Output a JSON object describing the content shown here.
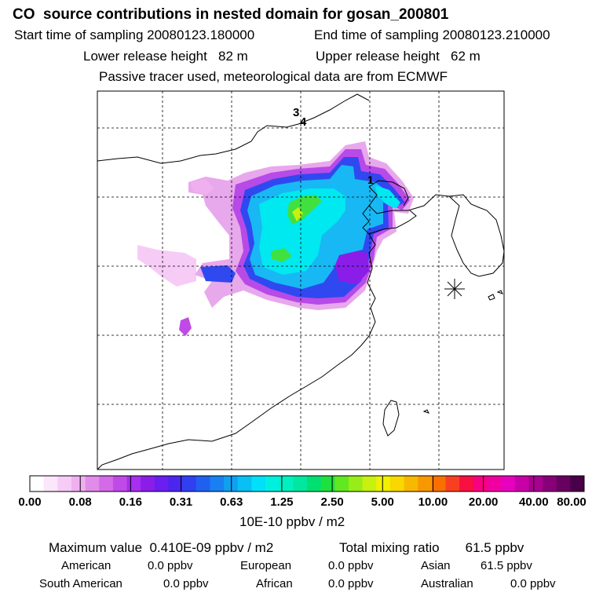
{
  "header": {
    "title": "CO  source contributions in nested domain for gosan_200801",
    "start_time": "Start time of sampling 20080123.180000",
    "end_time": "End time of sampling 20080123.210000",
    "lower_height": "Lower release height   82 m",
    "upper_height": "Upper release height   62 m",
    "tracer_note": "Passive tracer used, meteorological data are from ECMWF"
  },
  "chart_data": {
    "type": "heatmap",
    "title": "CO  source contributions in nested domain for gosan_200801",
    "map_labels": [
      "3",
      "4",
      "1"
    ],
    "colorbar": {
      "unit": "10E-10 ppbv / m2",
      "ticks": [
        "0.00",
        "0.08",
        "0.16",
        "0.31",
        "0.63",
        "1.25",
        "2.50",
        "5.00",
        "10.00",
        "20.00",
        "40.00",
        "80.00"
      ],
      "colors": [
        "#ffffff",
        "#fbe6fb",
        "#f6ccf6",
        "#f0b0f0",
        "#e08ce8",
        "#d46ae8",
        "#c04ae8",
        "#a82ef0",
        "#8a1ee8",
        "#6a1ef0",
        "#4a26f0",
        "#3040f0",
        "#2060f0",
        "#1880f0",
        "#10a0f0",
        "#08c0f4",
        "#00e0f8",
        "#00f0e0",
        "#00f0c0",
        "#00e8a0",
        "#00e070",
        "#20e040",
        "#60e820",
        "#98ec18",
        "#c8f010",
        "#f0f000",
        "#f8d800",
        "#f8b800",
        "#f89800",
        "#f87000",
        "#f84020",
        "#f81040",
        "#f80080",
        "#f000a0",
        "#e800c0",
        "#c800a8",
        "#a80090",
        "#880078",
        "#680060",
        "#480048"
      ]
    },
    "max_value": "Maximum value  0.410E-09 ppbv / m2",
    "total_mixing_ratio": "Total mixing ratio       61.5 ppbv",
    "regions": [
      {
        "name": "American",
        "value": "0.0 ppbv"
      },
      {
        "name": "European",
        "value": "0.0 ppbv"
      },
      {
        "name": "Asian",
        "value": "61.5 ppbv"
      },
      {
        "name": "South American",
        "value": "0.0 ppbv"
      },
      {
        "name": "African",
        "value": "0.0 ppbv"
      },
      {
        "name": "Australian",
        "value": "0.0 ppbv"
      }
    ]
  }
}
